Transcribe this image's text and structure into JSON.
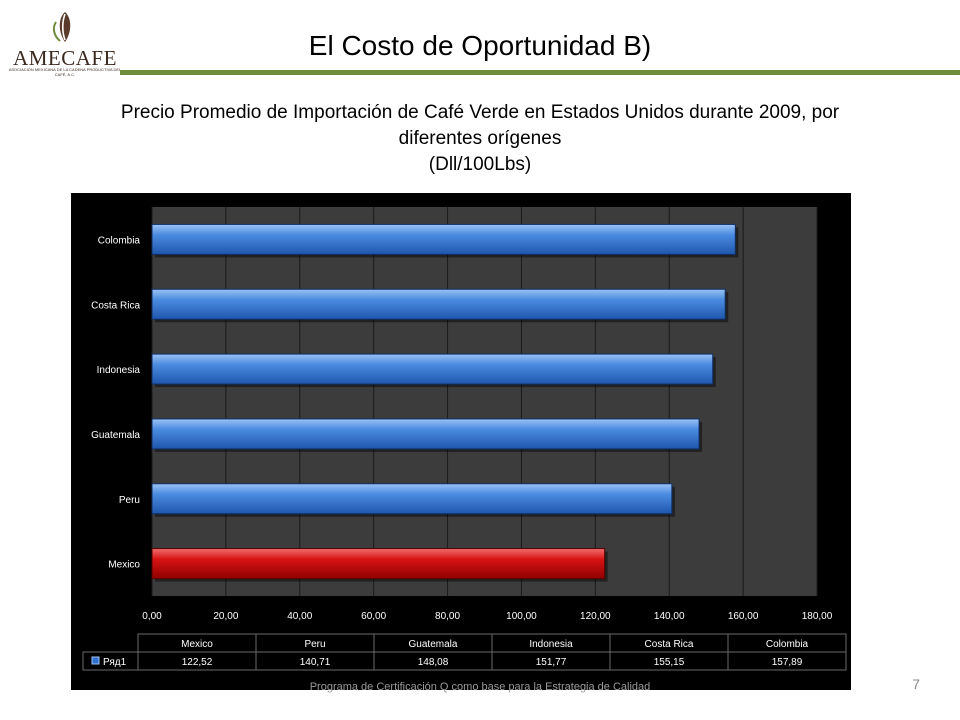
{
  "header": {
    "logo_text": "AMECAFE",
    "logo_subtext": "ASOCIACIÓN MEXICANA DE LA CADENA PRODUCTIVA DEL CAFÉ, A.C.",
    "title": "El Costo de Oportunidad B)",
    "rule_color": "#6e8c3a"
  },
  "subtitle": {
    "line1": "Precio Promedio de Importación de Café Verde en Estados Unidos durante 2009, por",
    "line2": "diferentes orígenes",
    "line3": "(Dll/100Lbs)"
  },
  "footer": {
    "text": "Programa de Certificación Q como base para la Estrategia de Calidad",
    "page_number": "7"
  },
  "chart_data": {
    "type": "bar",
    "orientation": "horizontal",
    "categories": [
      "Mexico",
      "Peru",
      "Guatemala",
      "Indonesia",
      "Costa Rica",
      "Colombia"
    ],
    "series": [
      {
        "name": "Ряд1",
        "values": [
          122.52,
          140.71,
          148.08,
          151.77,
          155.15,
          157.89
        ]
      }
    ],
    "value_labels": [
      "122,52",
      "140,71",
      "148,08",
      "151,77",
      "155,15",
      "157,89"
    ],
    "xlim": [
      0,
      180
    ],
    "x_ticks": [
      "0,00",
      "20,00",
      "40,00",
      "60,00",
      "80,00",
      "100,00",
      "120,00",
      "140,00",
      "160,00",
      "180,00"
    ],
    "grid": true,
    "data_table": true,
    "colors": {
      "default_bar": "#2f6fce",
      "highlight_bar": "#cc0000",
      "highlight_category": "Mexico",
      "plot_background": "#3c3c3c",
      "frame_background": "#000000"
    }
  }
}
